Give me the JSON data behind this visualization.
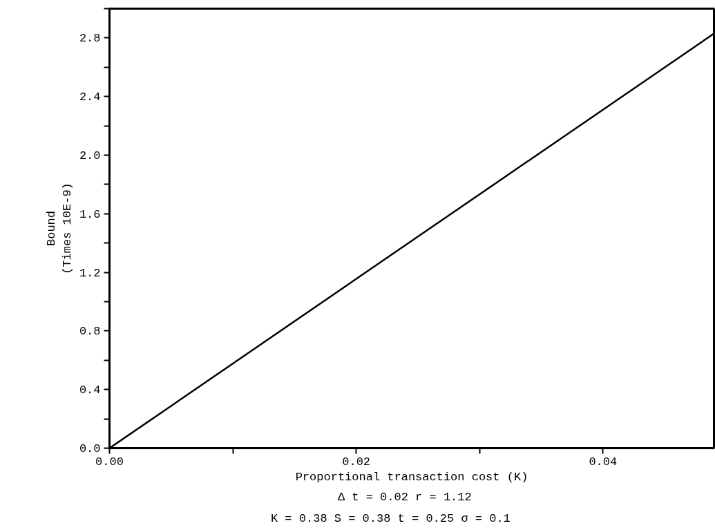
{
  "chart_data": {
    "type": "line",
    "xlabel": "Proportional transaction cost (K)",
    "ylabel": "Bound\n(Times 10E-9)",
    "annotations": [
      "Δ t = 0.02   r = 1.12",
      "K = 0.38   S = 0.38   t = 0.25   σ = 0.1"
    ],
    "x": [
      0,
      0.049
    ],
    "series": [
      {
        "color": "#000000",
        "values": [
          0,
          2.83
        ]
      }
    ],
    "xlim": [
      0,
      0.049
    ],
    "ylim": [
      0,
      3.0
    ],
    "xticks": [
      {
        "value": 0,
        "label": "0.00"
      },
      {
        "value": 0.01,
        "label": null
      },
      {
        "value": 0.02,
        "label": "0.02"
      },
      {
        "value": 0.03,
        "label": null
      },
      {
        "value": 0.04,
        "label": "0.04"
      }
    ],
    "yticks": [
      {
        "value": 0,
        "label": "0.0"
      },
      {
        "value": 0.2,
        "label": null
      },
      {
        "value": 0.4,
        "label": "0.4"
      },
      {
        "value": 0.6,
        "label": null
      },
      {
        "value": 0.8,
        "label": "0.8"
      },
      {
        "value": 1.0,
        "label": null
      },
      {
        "value": 1.2,
        "label": "1.2"
      },
      {
        "value": 1.4,
        "label": null
      },
      {
        "value": 1.6,
        "label": "1.6"
      },
      {
        "value": 1.8,
        "label": null
      },
      {
        "value": 2.0,
        "label": "2.0"
      },
      {
        "value": 2.2,
        "label": null
      },
      {
        "value": 2.4,
        "label": "2.4"
      },
      {
        "value": 2.6,
        "label": null
      },
      {
        "value": 2.8,
        "label": "2.8"
      },
      {
        "value": 3.0,
        "label": null
      }
    ],
    "grid": false,
    "marker": "none",
    "line_style": "solid"
  }
}
